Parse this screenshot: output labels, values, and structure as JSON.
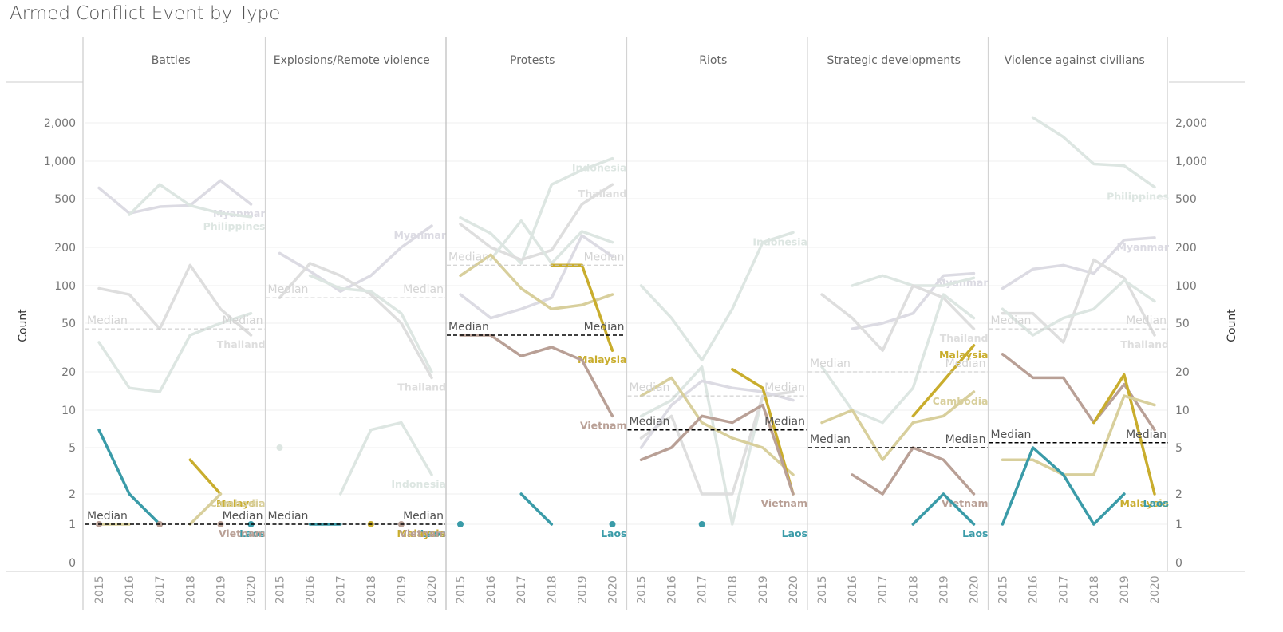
{
  "title": "Armed Conflict Event by Type",
  "chart_data": {
    "type": "line",
    "title": "Armed Conflict Event by Type",
    "ylabel": "Count",
    "ylabel_right": "Count",
    "xlabel": "",
    "y_scale": "symlog",
    "ylim": [
      0,
      2500
    ],
    "y_ticks": [
      0,
      1,
      2,
      5,
      10,
      20,
      50,
      100,
      200,
      500,
      1000,
      2000
    ],
    "y_tick_labels": [
      "0",
      "1",
      "2",
      "5",
      "10",
      "20",
      "50",
      "100",
      "200",
      "500",
      "1,000",
      "2,000"
    ],
    "x": [
      "2015",
      "2016",
      "2017",
      "2018",
      "2019",
      "2020"
    ],
    "grid": true,
    "median_label": "Median",
    "country_colors": {
      "Myanmar": "#dcdbe3",
      "Philippines": "#dde6e2",
      "Thailand": "#dedede",
      "Indonesia": "#dde6e2",
      "Cambodia": "#d8cf9c",
      "Malaysia": "#c9ad2d",
      "Vietnam": "#b9a096",
      "Laos": "#3a9ba8"
    },
    "panels": [
      {
        "name": "Battles",
        "medians": [
          {
            "value": 45,
            "style": "faded"
          },
          {
            "value": 1,
            "style": "dark"
          }
        ],
        "series": [
          {
            "name": "Myanmar",
            "values": [
              610,
              380,
              430,
              440,
              700,
              450
            ],
            "label": "Myanmar"
          },
          {
            "name": "Philippines",
            "values": [
              null,
              370,
              650,
              440,
              380,
              355
            ],
            "label": "Philippines"
          },
          {
            "name": "Thailand",
            "values": [
              95,
              85,
              45,
              145,
              65,
              40
            ],
            "label": "Thailand"
          },
          {
            "name": "Indonesia",
            "values": [
              35,
              15,
              14,
              40,
              50,
              60
            ],
            "label": ""
          },
          {
            "name": "Laos",
            "values": [
              7,
              2,
              1,
              null,
              null,
              1
            ],
            "label": "Laos"
          },
          {
            "name": "Malaysia",
            "values": [
              null,
              null,
              null,
              4,
              2,
              null
            ],
            "label": "Malaysia"
          },
          {
            "name": "Cambodia",
            "values": [
              1,
              1,
              null,
              1,
              2,
              null
            ],
            "label": "Cambodia"
          },
          {
            "name": "Vietnam",
            "values": [
              1,
              null,
              1,
              null,
              1,
              null
            ],
            "label": "Vietnam"
          }
        ]
      },
      {
        "name": "Explosions/Remote violence",
        "medians": [
          {
            "value": 80,
            "style": "faded"
          },
          {
            "value": 1,
            "style": "dark"
          }
        ],
        "series": [
          {
            "name": "Myanmar",
            "values": [
              180,
              130,
              90,
              120,
              200,
              300
            ],
            "label": "Myanmar"
          },
          {
            "name": "Thailand",
            "values": [
              80,
              150,
              120,
              85,
              50,
              18
            ],
            "label": "Thailand"
          },
          {
            "name": "Philippines",
            "values": [
              null,
              120,
              95,
              90,
              60,
              20
            ],
            "label": ""
          },
          {
            "name": "Indonesia",
            "values": [
              5,
              null,
              2,
              7,
              8,
              3
            ],
            "label": "Indonesia"
          },
          {
            "name": "Laos",
            "values": [
              null,
              1,
              1,
              null,
              null,
              null
            ],
            "label": "Laos"
          },
          {
            "name": "Malaysia",
            "values": [
              null,
              null,
              null,
              1,
              null,
              null
            ],
            "label": "Malaysia"
          },
          {
            "name": "Vietnam",
            "values": [
              null,
              null,
              null,
              null,
              1,
              null
            ],
            "label": "Vietnam"
          }
        ]
      },
      {
        "name": "Protests",
        "medians": [
          {
            "value": 145,
            "style": "faded"
          },
          {
            "value": 40,
            "style": "dark"
          }
        ],
        "series": [
          {
            "name": "Indonesia",
            "values": [
              350,
              260,
              150,
              650,
              850,
              1050
            ],
            "label": "Indonesia"
          },
          {
            "name": "Thailand",
            "values": [
              310,
              200,
              160,
              190,
              450,
              650
            ],
            "label": "Thailand"
          },
          {
            "name": "Philippines",
            "values": [
              null,
              160,
              330,
              150,
              270,
              220
            ],
            "label": ""
          },
          {
            "name": "Myanmar",
            "values": [
              85,
              55,
              65,
              80,
              250,
              170
            ],
            "label": ""
          },
          {
            "name": "Cambodia",
            "values": [
              120,
              175,
              95,
              65,
              70,
              85
            ],
            "label": ""
          },
          {
            "name": "Malaysia",
            "values": [
              null,
              null,
              null,
              145,
              145,
              30
            ],
            "label": "Malaysia"
          },
          {
            "name": "Vietnam",
            "values": [
              40,
              40,
              27,
              32,
              25,
              9
            ],
            "label": "Vietnam"
          },
          {
            "name": "Laos",
            "values": [
              1,
              null,
              2,
              1,
              null,
              1
            ],
            "label": "Laos"
          }
        ]
      },
      {
        "name": "Riots",
        "medians": [
          {
            "value": 13,
            "style": "faded"
          },
          {
            "value": 7,
            "style": "dark"
          }
        ],
        "series": [
          {
            "name": "Indonesia",
            "values": [
              100,
              55,
              25,
              65,
              220,
              265
            ],
            "label": "Indonesia"
          },
          {
            "name": "Philippines",
            "values": [
              9,
              12,
              22,
              1,
              13,
              null
            ],
            "label": ""
          },
          {
            "name": "Thailand",
            "values": [
              6,
              9,
              2,
              2,
              13,
              14
            ],
            "label": ""
          },
          {
            "name": "Myanmar",
            "values": [
              5,
              11,
              17,
              15,
              14,
              12
            ],
            "label": ""
          },
          {
            "name": "Cambodia",
            "values": [
              13,
              18,
              8,
              6,
              5,
              3
            ],
            "label": ""
          },
          {
            "name": "Malaysia",
            "values": [
              null,
              null,
              null,
              21,
              15,
              2
            ],
            "label": ""
          },
          {
            "name": "Vietnam",
            "values": [
              4,
              5,
              9,
              8,
              11,
              2
            ],
            "label": "Vietnam"
          },
          {
            "name": "Laos",
            "values": [
              null,
              null,
              1,
              null,
              null,
              null
            ],
            "label": "Laos"
          }
        ]
      },
      {
        "name": "Strategic developments",
        "medians": [
          {
            "value": 20,
            "style": "faded"
          },
          {
            "value": 5,
            "style": "dark"
          }
        ],
        "series": [
          {
            "name": "Myanmar",
            "values": [
              null,
              45,
              50,
              60,
              120,
              125
            ],
            "label": "Myanmar"
          },
          {
            "name": "Philippines",
            "values": [
              null,
              100,
              120,
              100,
              100,
              115
            ],
            "label": ""
          },
          {
            "name": "Thailand",
            "values": [
              85,
              55,
              30,
              100,
              80,
              45
            ],
            "label": "Thailand"
          },
          {
            "name": "Indonesia",
            "values": [
              22,
              10,
              8,
              15,
              85,
              55
            ],
            "label": ""
          },
          {
            "name": "Cambodia",
            "values": [
              8,
              10,
              4,
              8,
              9,
              14
            ],
            "label": "Cambodia"
          },
          {
            "name": "Malaysia",
            "values": [
              null,
              null,
              null,
              9,
              17,
              33
            ],
            "label": "Malaysia"
          },
          {
            "name": "Vietnam",
            "values": [
              null,
              3,
              2,
              5,
              4,
              2
            ],
            "label": "Vietnam"
          },
          {
            "name": "Laos",
            "values": [
              null,
              null,
              null,
              1,
              2,
              1
            ],
            "label": "Laos"
          }
        ]
      },
      {
        "name": "Violence against civilians",
        "medians": [
          {
            "value": 45,
            "style": "faded"
          },
          {
            "value": 5.5,
            "style": "dark"
          }
        ],
        "series": [
          {
            "name": "Philippines",
            "values": [
              null,
              2200,
              1550,
              950,
              920,
              620
            ],
            "label": "Philippines"
          },
          {
            "name": "Myanmar",
            "values": [
              95,
              135,
              145,
              125,
              230,
              240
            ],
            "label": "Myanmar"
          },
          {
            "name": "Thailand",
            "values": [
              60,
              60,
              35,
              160,
              115,
              40
            ],
            "label": "Thailand"
          },
          {
            "name": "Indonesia",
            "values": [
              65,
              40,
              55,
              65,
              110,
              75
            ],
            "label": ""
          },
          {
            "name": "Vietnam",
            "values": [
              28,
              18,
              18,
              8,
              16,
              7
            ],
            "label": ""
          },
          {
            "name": "Malaysia",
            "values": [
              null,
              null,
              null,
              8,
              19,
              2
            ],
            "label": "Malaysia"
          },
          {
            "name": "Cambodia",
            "values": [
              4,
              4,
              3,
              3,
              13,
              11
            ],
            "label": ""
          },
          {
            "name": "Laos",
            "values": [
              1,
              5,
              3,
              1,
              2,
              null
            ],
            "label": "Laos"
          }
        ]
      }
    ]
  }
}
